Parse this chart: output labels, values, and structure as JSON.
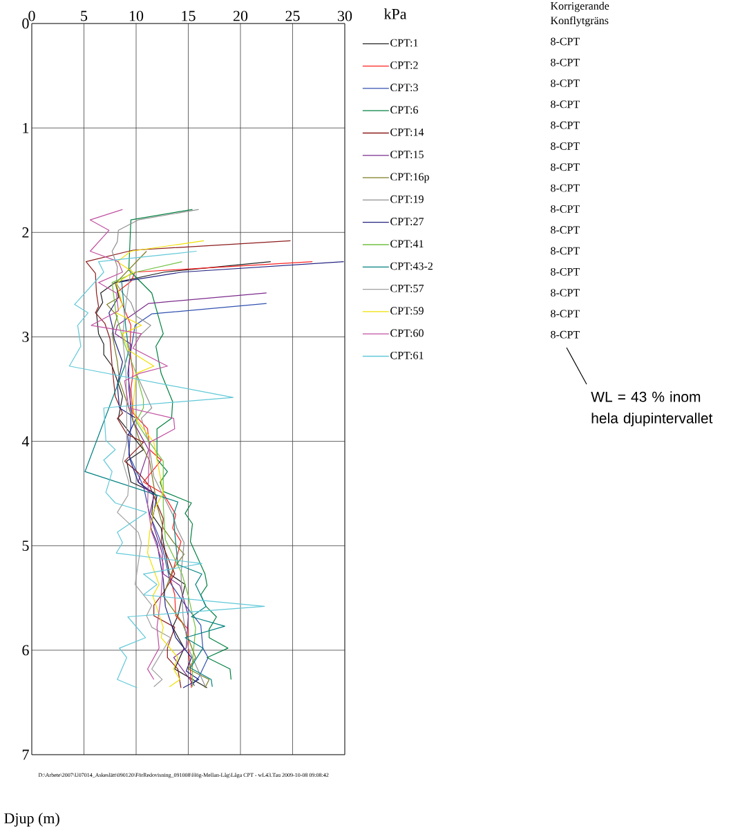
{
  "chart_data": {
    "type": "line",
    "xlabel": "kPa",
    "ylabel": "Djup (m)",
    "xlim": [
      0,
      30
    ],
    "ylim": [
      7,
      0
    ],
    "xticks": [
      0,
      5,
      10,
      15,
      20,
      25,
      30
    ],
    "yticks": [
      0,
      1,
      2,
      3,
      4,
      5,
      6,
      7
    ],
    "grid": true,
    "legend": "right",
    "series": [
      {
        "name": "CPT:1",
        "color": "#202020",
        "x": [
          22.9,
          12.7,
          8.0,
          6.6,
          6.8,
          6.2,
          6.4,
          6.9,
          6.9,
          7.7,
          8.2,
          8.7,
          8.3,
          10.7,
          9.1,
          9.5,
          11.7,
          11.5,
          12.4,
          12.6,
          13.2,
          14.7,
          14.0,
          13.5,
          14.6,
          13.7,
          16.8
        ],
        "values": [
          2.28,
          2.38,
          2.48,
          2.58,
          2.67,
          2.77,
          2.97,
          3.07,
          3.17,
          3.28,
          3.42,
          3.57,
          3.78,
          4.08,
          4.19,
          4.39,
          4.49,
          4.7,
          4.83,
          4.96,
          5.27,
          5.37,
          5.67,
          5.78,
          5.98,
          6.18,
          6.36
        ]
      },
      {
        "name": "CPT:2",
        "color": "#ff2020",
        "x": [
          26.9,
          9.9,
          9.5,
          8.2,
          9.5,
          9.4,
          9.7,
          9.5,
          9.7,
          11.1,
          11.3,
          12.4,
          10.7,
          12.6,
          13.8,
          13.5,
          14.3,
          13.7,
          13.3,
          13.7,
          13.8,
          15.0,
          15.0,
          15.2,
          15.3
        ],
        "values": [
          2.28,
          2.38,
          2.47,
          2.57,
          2.89,
          3.13,
          3.35,
          3.5,
          3.73,
          3.88,
          4.08,
          4.18,
          4.39,
          4.5,
          4.7,
          4.83,
          4.96,
          5.18,
          5.32,
          5.47,
          5.67,
          5.8,
          5.98,
          6.18,
          6.36
        ]
      },
      {
        "name": "CPT:3",
        "color": "#3050b0",
        "x": [
          22.5,
          11.5,
          9.9,
          9.5,
          9.2,
          9.4,
          9.5,
          9.3,
          10.7,
          11.3,
          12.2,
          12.6,
          13.3,
          14.8,
          16.2,
          16.4,
          16.9,
          16.0,
          15.3
        ],
        "values": [
          2.68,
          2.78,
          2.89,
          3.13,
          3.35,
          3.5,
          3.84,
          4.13,
          4.43,
          4.7,
          4.92,
          5.05,
          5.36,
          5.58,
          5.76,
          5.98,
          6.07,
          6.26,
          6.34
        ]
      },
      {
        "name": "CPT:6",
        "color": "#008040",
        "x": [
          15.4,
          9.5,
          9.3,
          11.5,
          12.6,
          11.9,
          12.4,
          13.5,
          13.4,
          12.0,
          12.0,
          13.0,
          12.3,
          12.6,
          15.3,
          14.7,
          15.4,
          15.2,
          16.6,
          16.8,
          16.2,
          16.7,
          17.7,
          17.0,
          17.0,
          18.8,
          16.8,
          19.0,
          19.1
        ],
        "values": [
          1.78,
          1.88,
          2.36,
          2.58,
          2.97,
          3.09,
          3.35,
          3.62,
          3.78,
          3.88,
          4.17,
          4.29,
          4.39,
          4.48,
          4.59,
          4.69,
          4.79,
          4.96,
          5.27,
          5.38,
          5.47,
          5.58,
          5.68,
          5.8,
          5.88,
          5.98,
          6.07,
          6.18,
          6.28
        ]
      },
      {
        "name": "CPT:14",
        "color": "#8b1a1a",
        "x": [
          24.8,
          9.7,
          5.2,
          6.1,
          6.2,
          6.4,
          6.1,
          7.0,
          7.5,
          7.7,
          8.0,
          8.7,
          8.2,
          9.1,
          10.7,
          8.9,
          10.2,
          11.3,
          12.6,
          12.4,
          13.7,
          12.6,
          11.7,
          11.7,
          13.7,
          13.0,
          13.0,
          14.0,
          14.3
        ],
        "values": [
          2.08,
          2.17,
          2.28,
          2.39,
          2.58,
          2.71,
          2.77,
          2.87,
          3.02,
          3.28,
          3.57,
          3.73,
          3.78,
          3.93,
          4.01,
          4.19,
          4.3,
          4.43,
          4.74,
          4.96,
          5.27,
          5.45,
          5.57,
          5.67,
          5.78,
          5.98,
          6.07,
          6.18,
          6.36
        ]
      },
      {
        "name": "CPT:15",
        "color": "#7b2a8b",
        "x": [
          22.5,
          11.2,
          8.2,
          8.0,
          9.5,
          9.3,
          9.3,
          9.7,
          11.2,
          10.5,
          10.2,
          11.7,
          11.3,
          12.5,
          12.6,
          14.2,
          15.0,
          14.8,
          13.6,
          15.6
        ],
        "values": [
          2.58,
          2.68,
          2.89,
          2.97,
          3.07,
          3.28,
          3.5,
          3.81,
          4.08,
          4.29,
          4.39,
          4.52,
          4.7,
          5.07,
          5.27,
          5.38,
          5.67,
          5.98,
          6.07,
          6.34
        ]
      },
      {
        "name": "CPT:16p",
        "color": "#7a7a20",
        "x": [
          11.0,
          8.0,
          8.4,
          7.2,
          8.2,
          7.7,
          8.2,
          8.4,
          9.3,
          10.4,
          11.3,
          12.0,
          12.6,
          13.6,
          14.6,
          13.5,
          12.6,
          14.4,
          15.7,
          15.0,
          17.0,
          16.6
        ],
        "values": [
          2.18,
          2.49,
          2.62,
          2.69,
          2.8,
          2.97,
          3.24,
          3.42,
          3.68,
          4.01,
          4.19,
          4.61,
          4.83,
          4.97,
          5.08,
          5.23,
          5.48,
          5.73,
          6.07,
          6.18,
          6.28,
          6.36
        ]
      },
      {
        "name": "CPT:19",
        "color": "#909090",
        "x": [
          16.0,
          10.2,
          8.3,
          8.2,
          7.7,
          8.2,
          8.1,
          8.7,
          9.5,
          10.0,
          11.4,
          10.0,
          10.0,
          11.5,
          10.5,
          11.2,
          11.7,
          12.6,
          13.5,
          13.9,
          14.6,
          14.3,
          14.5,
          15.0,
          16.6
        ],
        "values": [
          1.78,
          1.88,
          1.98,
          2.09,
          2.18,
          2.33,
          2.49,
          2.58,
          2.67,
          2.8,
          2.89,
          3.02,
          3.35,
          3.68,
          3.78,
          4.01,
          4.34,
          4.52,
          4.7,
          4.83,
          4.97,
          5.27,
          5.67,
          5.98,
          6.34
        ]
      },
      {
        "name": "CPT:27",
        "color": "#202080",
        "x": [
          29.9,
          14.4,
          8.1,
          8.3,
          7.4,
          7.7,
          7.9,
          8.7,
          8.2,
          8.4,
          10.0,
          9.2,
          9.4,
          10.2,
          12.0,
          11.4,
          12.0,
          12.6,
          12.8,
          13.8,
          15.3,
          14.8,
          16.0,
          14.5
        ],
        "values": [
          2.28,
          2.38,
          2.48,
          2.62,
          2.77,
          2.89,
          3.02,
          3.24,
          3.46,
          3.68,
          3.78,
          3.95,
          4.17,
          4.39,
          4.52,
          4.83,
          4.97,
          5.32,
          5.58,
          5.88,
          6.07,
          6.2,
          6.28,
          6.36
        ]
      },
      {
        "name": "CPT:41",
        "color": "#70c040",
        "x": [
          14.4,
          10.0,
          7.7,
          8.1,
          8.9,
          10.0,
          10.7,
          10.7,
          10.0,
          11.3,
          12.6,
          12.6,
          12.8,
          14.4,
          15.0,
          15.7,
          15.4,
          15.4
        ],
        "values": [
          2.28,
          2.38,
          2.48,
          2.8,
          3.07,
          3.35,
          3.6,
          3.68,
          3.81,
          4.01,
          4.19,
          4.61,
          4.94,
          5.27,
          5.48,
          5.79,
          6.11,
          6.35
        ]
      },
      {
        "name": "CPT:43-2",
        "color": "#008080",
        "x": [
          8.6,
          9.0,
          9.3,
          8.9,
          5.1,
          14.0,
          13.6,
          13.7,
          14.0,
          16.3,
          15.7,
          16.7,
          15.3,
          18.5,
          14.7,
          16.4,
          15.2,
          17.2,
          17.3
        ],
        "values": [
          2.45,
          2.9,
          3.13,
          3.28,
          4.29,
          4.58,
          4.7,
          4.87,
          5.18,
          5.27,
          5.37,
          5.58,
          5.68,
          5.77,
          5.88,
          5.98,
          6.17,
          6.28,
          6.35
        ]
      },
      {
        "name": "CPT:57",
        "color": "#a0a0a0",
        "x": [
          9.5,
          9.0,
          8.7,
          9.0,
          9.1,
          9.1,
          8.7,
          9.3,
          9.2,
          8.2,
          10.2,
          10.5,
          10.2,
          9.9,
          11.5,
          11.0,
          11.5,
          13.3,
          11.5,
          12.5,
          11.7
        ],
        "values": [
          2.35,
          2.7,
          3.0,
          3.3,
          3.6,
          4.01,
          4.19,
          4.39,
          4.52,
          4.68,
          4.87,
          4.97,
          5.17,
          5.37,
          5.57,
          5.67,
          5.78,
          5.88,
          6.18,
          6.28,
          6.35
        ]
      },
      {
        "name": "CPT:59",
        "color": "#f0e000",
        "x": [
          16.5,
          9.5,
          8.2,
          9.7,
          8.1,
          8.7,
          8.1,
          10.5,
          8.7,
          9.3,
          11.7,
          10.0,
          9.7,
          10.0,
          11.7,
          12.6,
          11.7,
          11.3,
          11.1,
          12.2,
          11.6,
          12.6,
          12.4,
          14.0,
          13.6,
          14.2,
          13.2
        ],
        "values": [
          2.08,
          2.18,
          2.28,
          2.38,
          2.49,
          2.69,
          2.77,
          2.89,
          2.97,
          3.13,
          3.28,
          3.35,
          3.68,
          3.79,
          4.01,
          4.49,
          4.66,
          4.87,
          5.07,
          5.37,
          5.48,
          5.78,
          5.88,
          6.07,
          6.18,
          6.28,
          6.35
        ]
      },
      {
        "name": "CPT:60",
        "color": "#c050a0",
        "x": [
          8.7,
          5.6,
          7.4,
          5.6,
          8.3,
          8.7,
          6.4,
          8.1,
          8.3,
          5.7,
          10.5,
          9.7,
          13.0,
          10.3,
          8.9,
          9.3,
          13.6,
          13.7,
          11.3,
          11.2,
          11.1,
          11.5,
          12.6,
          12.4,
          12.0,
          12.2,
          11.1,
          11.7
        ],
        "values": [
          1.78,
          1.88,
          1.98,
          2.18,
          2.28,
          2.38,
          2.48,
          2.58,
          2.75,
          2.89,
          2.97,
          3.11,
          3.28,
          3.35,
          3.42,
          3.68,
          3.78,
          3.88,
          4.01,
          4.29,
          4.61,
          4.87,
          5.17,
          5.47,
          5.78,
          5.98,
          6.18,
          6.28
        ]
      },
      {
        "name": "CPT:61",
        "color": "#60c8d8",
        "x": [
          15.8,
          6.4,
          6.9,
          4.1,
          5.4,
          4.4,
          4.7,
          3.6,
          19.3,
          6.9,
          7.1,
          8.0,
          6.9,
          7.7,
          7.1,
          8.0,
          11.0,
          8.2,
          8.7,
          8.1,
          16.3,
          10.7,
          12.0,
          10.7,
          22.3,
          9.2,
          10.9,
          8.4,
          9.1,
          8.2,
          10.1
        ],
        "values": [
          2.18,
          2.28,
          2.38,
          2.69,
          2.77,
          2.89,
          3.09,
          3.28,
          3.58,
          3.68,
          3.99,
          4.08,
          4.18,
          4.29,
          4.49,
          4.59,
          4.68,
          4.87,
          4.97,
          5.07,
          5.17,
          5.27,
          5.37,
          5.47,
          5.58,
          5.68,
          5.88,
          5.98,
          6.07,
          6.28,
          6.36
        ]
      }
    ],
    "annotations": [
      "Korrigerande",
      "Konflytgräns",
      "8-CPT",
      "8-CPT",
      "8-CPT",
      "8-CPT",
      "8-CPT",
      "8-CPT",
      "8-CPT",
      "8-CPT",
      "8-CPT",
      "8-CPT",
      "8-CPT",
      "8-CPT",
      "8-CPT",
      "8-CPT",
      "8-CPT",
      "WL = 43 % inom hela djupintervallet",
      "D:\\Arbete\\2007\\U07014_Askeslätt\\090120\\FörRedovisning_091008\\Hög-Mellan-Låg\\Låga CPT - wL43.Tau  2009-10-08 09:08:42"
    ]
  }
}
